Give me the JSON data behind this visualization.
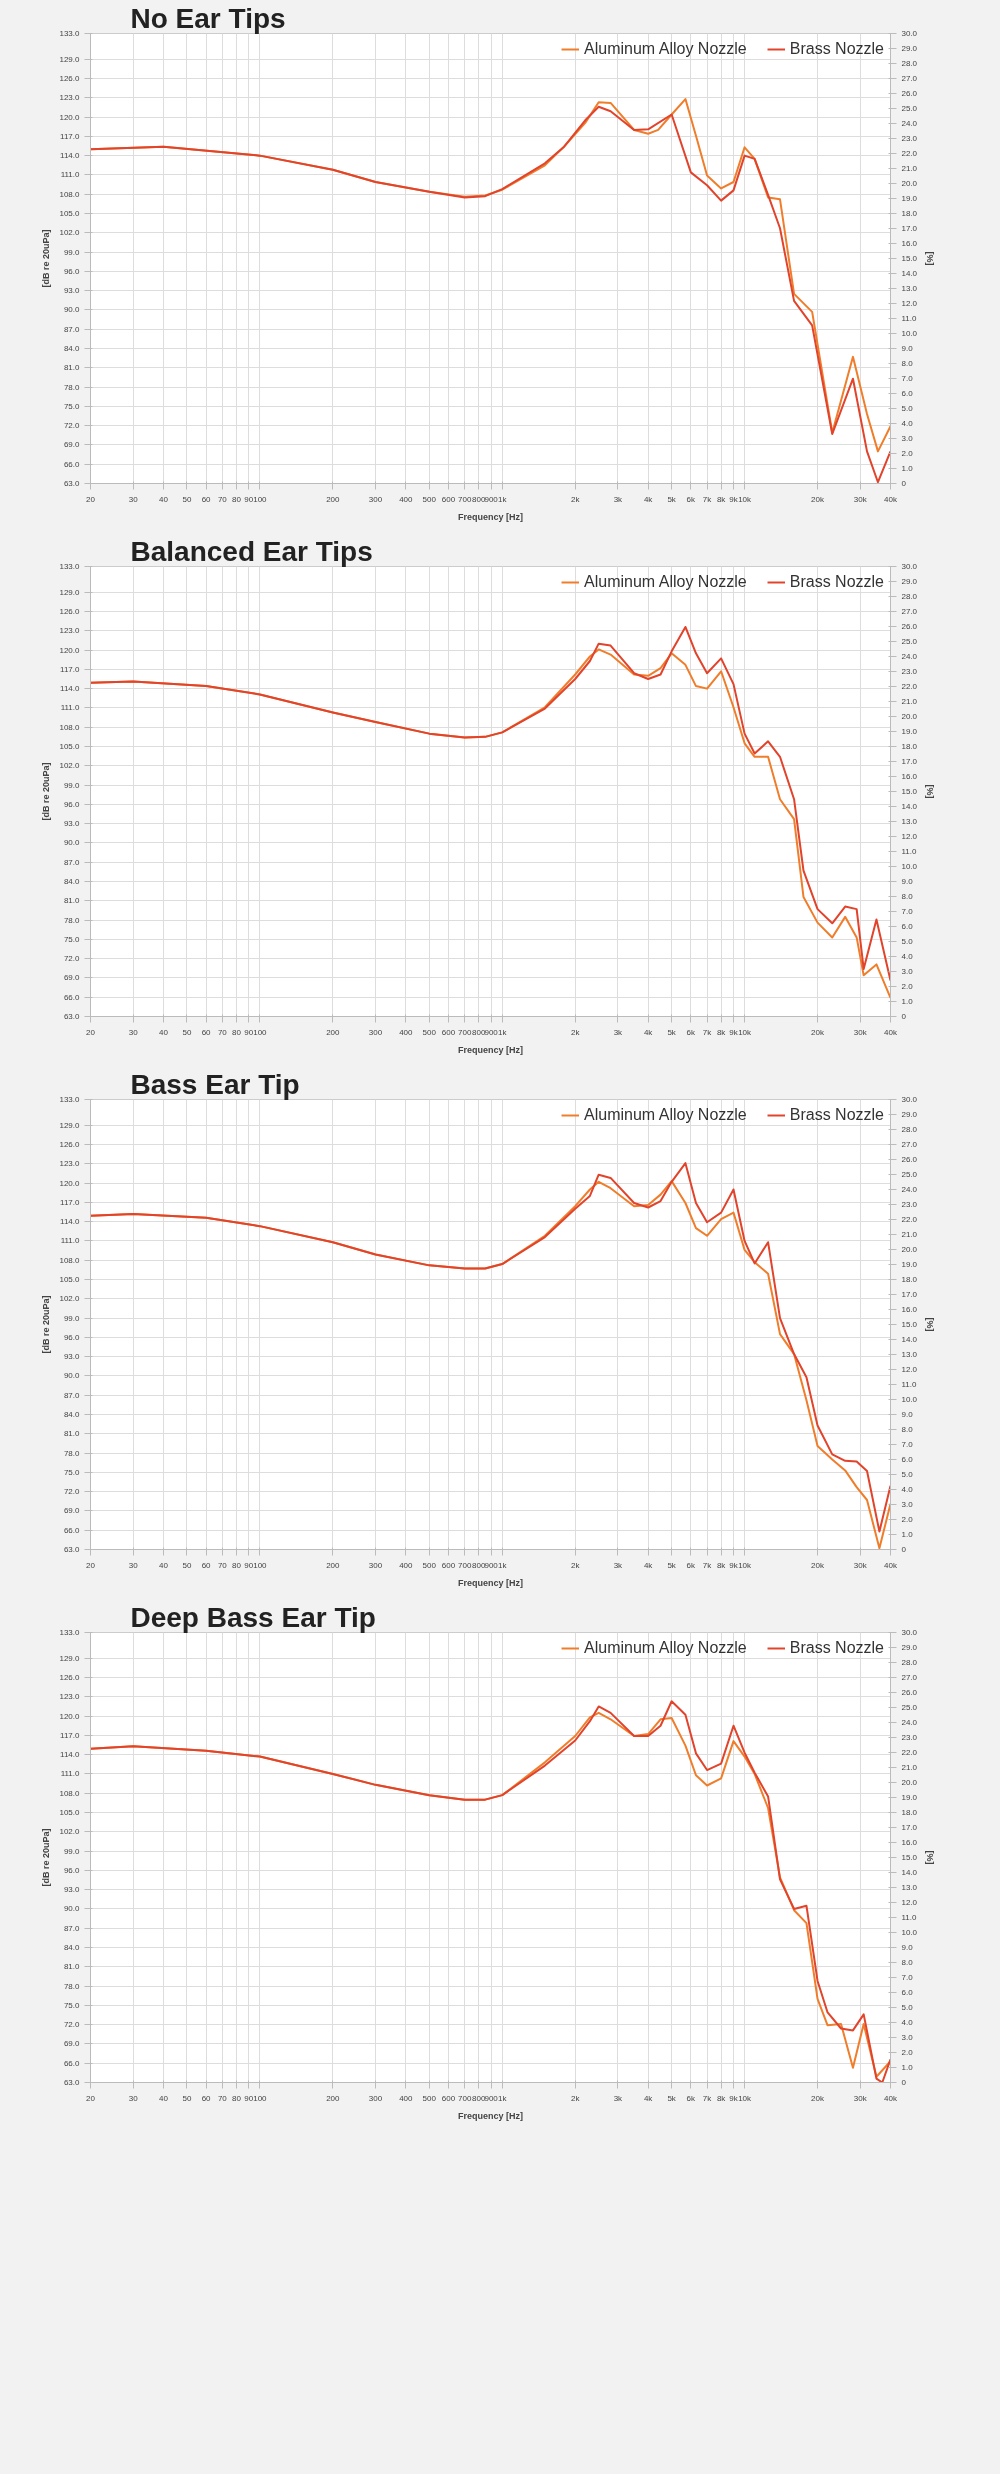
{
  "chart_data": [
    {
      "type": "line",
      "title": "No Ear Tips",
      "xlabel": "Frequency [Hz]",
      "ylabel": "[dB re 20uPa]",
      "y2label": "[%]",
      "log": "x",
      "grid": true,
      "legend": "top right",
      "xlim": [
        20,
        40000
      ],
      "ylim": [
        63,
        133
      ],
      "y2lim": [
        0,
        30
      ],
      "xticks": [
        20,
        30,
        40,
        50,
        60,
        70,
        80,
        90,
        100,
        200,
        300,
        400,
        500,
        600,
        700,
        800,
        900,
        {
          "value": 1000,
          "label": "1k"
        },
        {
          "value": 2000,
          "label": "2k"
        },
        {
          "value": 3000,
          "label": "3k"
        },
        {
          "value": 4000,
          "label": "4k"
        },
        {
          "value": 5000,
          "label": "5k"
        },
        {
          "value": 6000,
          "label": "6k"
        },
        {
          "value": 7000,
          "label": "7k"
        },
        {
          "value": 8000,
          "label": "8k"
        },
        {
          "value": 9000,
          "label": "9k"
        },
        {
          "value": 10000,
          "label": "10k"
        },
        {
          "value": 20000,
          "label": "20k"
        },
        {
          "value": 30000,
          "label": "30k"
        },
        {
          "value": 40000,
          "label": "40k"
        }
      ],
      "yticks": [
        {
          "value": 63,
          "label": "63.0"
        },
        {
          "value": 66,
          "label": "66.0"
        },
        {
          "value": 69,
          "label": "69.0"
        },
        {
          "value": 72,
          "label": "72.0"
        },
        {
          "value": 75,
          "label": "75.0"
        },
        {
          "value": 78,
          "label": "78.0"
        },
        {
          "value": 81,
          "label": "81.0"
        },
        {
          "value": 84,
          "label": "84.0"
        },
        {
          "value": 87,
          "label": "87.0"
        },
        {
          "value": 90,
          "label": "90.0"
        },
        {
          "value": 93,
          "label": "93.0"
        },
        {
          "value": 96,
          "label": "96.0"
        },
        {
          "value": 99,
          "label": "99.0"
        },
        {
          "value": 102,
          "label": "102.0"
        },
        {
          "value": 105,
          "label": "105.0"
        },
        {
          "value": 108,
          "label": "108.0"
        },
        {
          "value": 111,
          "label": "111.0"
        },
        {
          "value": 114,
          "label": "114.0"
        },
        {
          "value": 117,
          "label": "117.0"
        },
        {
          "value": 120,
          "label": "120.0"
        },
        {
          "value": 123,
          "label": "123.0"
        },
        {
          "value": 126,
          "label": "126.0"
        },
        {
          "value": 129,
          "label": "129.0"
        },
        {
          "value": 133,
          "label": "133.0"
        }
      ],
      "y2ticks": [
        0,
        {
          "value": 1,
          "label": "1.0"
        },
        {
          "value": 2,
          "label": "2.0"
        },
        {
          "value": 3,
          "label": "3.0"
        },
        {
          "value": 4,
          "label": "4.0"
        },
        {
          "value": 5,
          "label": "5.0"
        },
        {
          "value": 6,
          "label": "6.0"
        },
        {
          "value": 7,
          "label": "7.0"
        },
        {
          "value": 8,
          "label": "8.0"
        },
        {
          "value": 9,
          "label": "9.0"
        },
        {
          "value": 10,
          "label": "10.0"
        },
        {
          "value": 11,
          "label": "11.0"
        },
        {
          "value": 12,
          "label": "12.0"
        },
        {
          "value": 13,
          "label": "13.0"
        },
        {
          "value": 14,
          "label": "14.0"
        },
        {
          "value": 15,
          "label": "15.0"
        },
        {
          "value": 16,
          "label": "16.0"
        },
        {
          "value": 17,
          "label": "17.0"
        },
        {
          "value": 18,
          "label": "18.0"
        },
        {
          "value": 19,
          "label": "19.0"
        },
        {
          "value": 20,
          "label": "20.0"
        },
        {
          "value": 21,
          "label": "21.0"
        },
        {
          "value": 22,
          "label": "22.0"
        },
        {
          "value": 23,
          "label": "23.0"
        },
        {
          "value": 24,
          "label": "24.0"
        },
        {
          "value": 25,
          "label": "25.0"
        },
        {
          "value": 26,
          "label": "26.0"
        },
        {
          "value": 27,
          "label": "27.0"
        },
        {
          "value": 28,
          "label": "28.0"
        },
        {
          "value": 29,
          "label": "29.0"
        },
        {
          "value": 30,
          "label": "30.0"
        }
      ],
      "series": [
        {
          "name": "Aluminum Alloy Nozzle",
          "color": "#f07d2a",
          "x": [
            20,
            40,
            100,
            200,
            300,
            500,
            700,
            850,
            1000,
            1500,
            1800,
            2200,
            2500,
            2800,
            3500,
            4000,
            4400,
            5000,
            5700,
            6300,
            7000,
            8000,
            9000,
            10000,
            11000,
            12500,
            14000,
            16000,
            19000,
            23000,
            28000,
            32000,
            35500,
            40000
          ],
          "values": [
            115.0,
            115.4,
            114.0,
            111.8,
            109.9,
            108.4,
            107.6,
            107.8,
            108.7,
            112.5,
            115.4,
            119.1,
            122.3,
            122.2,
            118.0,
            117.4,
            118.0,
            120.4,
            122.8,
            117.1,
            110.9,
            108.9,
            109.9,
            115.3,
            113.5,
            107.5,
            107.2,
            92.5,
            89.7,
            70.9,
            82.7,
            73.8,
            68.0,
            71.9
          ]
        },
        {
          "name": "Brass Nozzle",
          "color": "#e2432b",
          "x": [
            20,
            40,
            100,
            200,
            300,
            500,
            700,
            850,
            1000,
            1500,
            1800,
            2200,
            2500,
            2800,
            3500,
            4000,
            5000,
            6000,
            7000,
            8000,
            9000,
            10000,
            11000,
            12500,
            14000,
            16000,
            19000,
            23000,
            28000,
            32000,
            35500,
            40000
          ],
          "values": [
            115.0,
            115.4,
            114.0,
            111.8,
            109.9,
            108.4,
            107.5,
            107.7,
            108.8,
            112.8,
            115.4,
            119.5,
            121.6,
            120.9,
            118.0,
            118.1,
            120.4,
            111.4,
            109.4,
            107.0,
            108.6,
            114.0,
            113.5,
            107.9,
            102.7,
            91.4,
            87.6,
            70.7,
            79.3,
            68.0,
            63.2,
            68.0
          ]
        }
      ]
    },
    {
      "type": "line",
      "title": "Balanced Ear Tips",
      "xlabel": "Frequency [Hz]",
      "ylabel": "[dB re 20uPa]",
      "y2label": "[%]",
      "log": "x",
      "grid": true,
      "legend": "top right",
      "xlim": [
        20,
        40000
      ],
      "ylim": [
        63,
        133
      ],
      "y2lim": [
        0,
        30
      ],
      "xticks": [
        20,
        30,
        40,
        50,
        60,
        70,
        80,
        90,
        100,
        200,
        300,
        400,
        500,
        600,
        700,
        800,
        900,
        {
          "value": 1000,
          "label": "1k"
        },
        {
          "value": 2000,
          "label": "2k"
        },
        {
          "value": 3000,
          "label": "3k"
        },
        {
          "value": 4000,
          "label": "4k"
        },
        {
          "value": 5000,
          "label": "5k"
        },
        {
          "value": 6000,
          "label": "6k"
        },
        {
          "value": 7000,
          "label": "7k"
        },
        {
          "value": 8000,
          "label": "8k"
        },
        {
          "value": 9000,
          "label": "9k"
        },
        {
          "value": 10000,
          "label": "10k"
        },
        {
          "value": 20000,
          "label": "20k"
        },
        {
          "value": 30000,
          "label": "30k"
        },
        {
          "value": 40000,
          "label": "40k"
        }
      ],
      "yticks": [
        {
          "value": 63,
          "label": "63.0"
        },
        {
          "value": 66,
          "label": "66.0"
        },
        {
          "value": 69,
          "label": "69.0"
        },
        {
          "value": 72,
          "label": "72.0"
        },
        {
          "value": 75,
          "label": "75.0"
        },
        {
          "value": 78,
          "label": "78.0"
        },
        {
          "value": 81,
          "label": "81.0"
        },
        {
          "value": 84,
          "label": "84.0"
        },
        {
          "value": 87,
          "label": "87.0"
        },
        {
          "value": 90,
          "label": "90.0"
        },
        {
          "value": 93,
          "label": "93.0"
        },
        {
          "value": 96,
          "label": "96.0"
        },
        {
          "value": 99,
          "label": "99.0"
        },
        {
          "value": 102,
          "label": "102.0"
        },
        {
          "value": 105,
          "label": "105.0"
        },
        {
          "value": 108,
          "label": "108.0"
        },
        {
          "value": 111,
          "label": "111.0"
        },
        {
          "value": 114,
          "label": "114.0"
        },
        {
          "value": 117,
          "label": "117.0"
        },
        {
          "value": 120,
          "label": "120.0"
        },
        {
          "value": 123,
          "label": "123.0"
        },
        {
          "value": 126,
          "label": "126.0"
        },
        {
          "value": 129,
          "label": "129.0"
        },
        {
          "value": 133,
          "label": "133.0"
        }
      ],
      "y2ticks": [
        0,
        {
          "value": 1,
          "label": "1.0"
        },
        {
          "value": 2,
          "label": "2.0"
        },
        {
          "value": 3,
          "label": "3.0"
        },
        {
          "value": 4,
          "label": "4.0"
        },
        {
          "value": 5,
          "label": "5.0"
        },
        {
          "value": 6,
          "label": "6.0"
        },
        {
          "value": 7,
          "label": "7.0"
        },
        {
          "value": 8,
          "label": "8.0"
        },
        {
          "value": 9,
          "label": "9.0"
        },
        {
          "value": 10,
          "label": "10.0"
        },
        {
          "value": 11,
          "label": "11.0"
        },
        {
          "value": 12,
          "label": "12.0"
        },
        {
          "value": 13,
          "label": "13.0"
        },
        {
          "value": 14,
          "label": "14.0"
        },
        {
          "value": 15,
          "label": "15.0"
        },
        {
          "value": 16,
          "label": "16.0"
        },
        {
          "value": 17,
          "label": "17.0"
        },
        {
          "value": 18,
          "label": "18.0"
        },
        {
          "value": 19,
          "label": "19.0"
        },
        {
          "value": 20,
          "label": "20.0"
        },
        {
          "value": 21,
          "label": "21.0"
        },
        {
          "value": 22,
          "label": "22.0"
        },
        {
          "value": 23,
          "label": "23.0"
        },
        {
          "value": 24,
          "label": "24.0"
        },
        {
          "value": 25,
          "label": "25.0"
        },
        {
          "value": 26,
          "label": "26.0"
        },
        {
          "value": 27,
          "label": "27.0"
        },
        {
          "value": 28,
          "label": "28.0"
        },
        {
          "value": 29,
          "label": "29.0"
        },
        {
          "value": 30,
          "label": "30.0"
        }
      ],
      "series": [
        {
          "name": "Aluminum Alloy Nozzle",
          "color": "#f07d2a",
          "x": [
            20,
            30,
            60,
            100,
            200,
            300,
            500,
            700,
            850,
            1000,
            1500,
            2000,
            2300,
            2500,
            2800,
            3500,
            4000,
            4500,
            5000,
            5700,
            6300,
            7000,
            8000,
            9000,
            10000,
            11000,
            12500,
            14000,
            16000,
            17500,
            20000,
            23000,
            26000,
            29000,
            31000,
            35000,
            40000
          ],
          "values": [
            114.9,
            115.1,
            114.4,
            113.1,
            110.3,
            108.8,
            107.0,
            106.4,
            106.5,
            107.2,
            111.1,
            116.2,
            119.0,
            120.1,
            119.3,
            116.2,
            116.0,
            117.2,
            119.5,
            117.7,
            114.4,
            114.0,
            116.7,
            111.1,
            105.5,
            103.4,
            103.4,
            96.8,
            93.7,
            81.6,
            77.6,
            75.3,
            78.5,
            75.3,
            69.4,
            71.1,
            65.9
          ]
        },
        {
          "name": "Brass Nozzle",
          "color": "#e2432b",
          "x": [
            20,
            30,
            60,
            100,
            200,
            300,
            500,
            700,
            850,
            1000,
            1500,
            2000,
            2300,
            2500,
            2800,
            3500,
            4000,
            4500,
            5000,
            5700,
            6300,
            7000,
            8000,
            9000,
            10000,
            11000,
            12500,
            14000,
            16000,
            17500,
            20000,
            23000,
            26000,
            29000,
            31000,
            35000,
            40000
          ],
          "values": [
            114.9,
            115.1,
            114.4,
            113.1,
            110.3,
            108.8,
            107.0,
            106.4,
            106.5,
            107.2,
            110.9,
            115.5,
            118.3,
            121.0,
            120.7,
            116.4,
            115.5,
            116.2,
            119.8,
            123.6,
            119.5,
            116.4,
            118.7,
            114.7,
            107.0,
            103.9,
            105.8,
            103.4,
            96.8,
            85.7,
            79.7,
            77.5,
            80.1,
            79.7,
            70.4,
            78.1,
            68.6
          ]
        }
      ]
    },
    {
      "type": "line",
      "title": "Bass Ear Tip",
      "xlabel": "Frequency [Hz]",
      "ylabel": "[dB re 20uPa]",
      "y2label": "[%]",
      "log": "x",
      "grid": true,
      "legend": "top right",
      "xlim": [
        20,
        40000
      ],
      "ylim": [
        63,
        133
      ],
      "y2lim": [
        0,
        30
      ],
      "xticks": [
        20,
        30,
        40,
        50,
        60,
        70,
        80,
        90,
        100,
        200,
        300,
        400,
        500,
        600,
        700,
        800,
        900,
        {
          "value": 1000,
          "label": "1k"
        },
        {
          "value": 2000,
          "label": "2k"
        },
        {
          "value": 3000,
          "label": "3k"
        },
        {
          "value": 4000,
          "label": "4k"
        },
        {
          "value": 5000,
          "label": "5k"
        },
        {
          "value": 6000,
          "label": "6k"
        },
        {
          "value": 7000,
          "label": "7k"
        },
        {
          "value": 8000,
          "label": "8k"
        },
        {
          "value": 9000,
          "label": "9k"
        },
        {
          "value": 10000,
          "label": "10k"
        },
        {
          "value": 20000,
          "label": "20k"
        },
        {
          "value": 30000,
          "label": "30k"
        },
        {
          "value": 40000,
          "label": "40k"
        }
      ],
      "yticks": [
        {
          "value": 63,
          "label": "63.0"
        },
        {
          "value": 66,
          "label": "66.0"
        },
        {
          "value": 69,
          "label": "69.0"
        },
        {
          "value": 72,
          "label": "72.0"
        },
        {
          "value": 75,
          "label": "75.0"
        },
        {
          "value": 78,
          "label": "78.0"
        },
        {
          "value": 81,
          "label": "81.0"
        },
        {
          "value": 84,
          "label": "84.0"
        },
        {
          "value": 87,
          "label": "87.0"
        },
        {
          "value": 90,
          "label": "90.0"
        },
        {
          "value": 93,
          "label": "93.0"
        },
        {
          "value": 96,
          "label": "96.0"
        },
        {
          "value": 99,
          "label": "99.0"
        },
        {
          "value": 102,
          "label": "102.0"
        },
        {
          "value": 105,
          "label": "105.0"
        },
        {
          "value": 108,
          "label": "108.0"
        },
        {
          "value": 111,
          "label": "111.0"
        },
        {
          "value": 114,
          "label": "114.0"
        },
        {
          "value": 117,
          "label": "117.0"
        },
        {
          "value": 120,
          "label": "120.0"
        },
        {
          "value": 123,
          "label": "123.0"
        },
        {
          "value": 126,
          "label": "126.0"
        },
        {
          "value": 129,
          "label": "129.0"
        },
        {
          "value": 133,
          "label": "133.0"
        }
      ],
      "y2ticks": [
        0,
        {
          "value": 1,
          "label": "1.0"
        },
        {
          "value": 2,
          "label": "2.0"
        },
        {
          "value": 3,
          "label": "3.0"
        },
        {
          "value": 4,
          "label": "4.0"
        },
        {
          "value": 5,
          "label": "5.0"
        },
        {
          "value": 6,
          "label": "6.0"
        },
        {
          "value": 7,
          "label": "7.0"
        },
        {
          "value": 8,
          "label": "8.0"
        },
        {
          "value": 9,
          "label": "9.0"
        },
        {
          "value": 10,
          "label": "10.0"
        },
        {
          "value": 11,
          "label": "11.0"
        },
        {
          "value": 12,
          "label": "12.0"
        },
        {
          "value": 13,
          "label": "13.0"
        },
        {
          "value": 14,
          "label": "14.0"
        },
        {
          "value": 15,
          "label": "15.0"
        },
        {
          "value": 16,
          "label": "16.0"
        },
        {
          "value": 17,
          "label": "17.0"
        },
        {
          "value": 18,
          "label": "18.0"
        },
        {
          "value": 19,
          "label": "19.0"
        },
        {
          "value": 20,
          "label": "20.0"
        },
        {
          "value": 21,
          "label": "21.0"
        },
        {
          "value": 22,
          "label": "22.0"
        },
        {
          "value": 23,
          "label": "23.0"
        },
        {
          "value": 24,
          "label": "24.0"
        },
        {
          "value": 25,
          "label": "25.0"
        },
        {
          "value": 26,
          "label": "26.0"
        },
        {
          "value": 27,
          "label": "27.0"
        },
        {
          "value": 28,
          "label": "28.0"
        },
        {
          "value": 29,
          "label": "29.0"
        },
        {
          "value": 30,
          "label": "30.0"
        }
      ],
      "series": [
        {
          "name": "Aluminum Alloy Nozzle",
          "color": "#f07d2a",
          "x": [
            20,
            30,
            60,
            100,
            200,
            300,
            500,
            700,
            850,
            1000,
            1500,
            2000,
            2300,
            2500,
            2800,
            3500,
            4000,
            4500,
            5000,
            5700,
            6300,
            7000,
            8000,
            9000,
            10000,
            11000,
            12500,
            14000,
            16000,
            18000,
            20000,
            23000,
            26000,
            29000,
            32000,
            36000,
            40000
          ],
          "values": [
            114.9,
            115.2,
            114.6,
            113.3,
            110.8,
            108.9,
            107.2,
            106.7,
            106.7,
            107.4,
            111.8,
            116.4,
            119.0,
            120.2,
            119.2,
            116.4,
            116.6,
            118.2,
            120.3,
            116.9,
            113.0,
            111.8,
            114.4,
            115.4,
            109.6,
            107.7,
            105.9,
            96.5,
            93.4,
            86.2,
            79.1,
            77.0,
            75.3,
            72.7,
            70.7,
            63.2,
            70.1
          ]
        },
        {
          "name": "Brass Nozzle",
          "color": "#e2432b",
          "x": [
            20,
            30,
            60,
            100,
            200,
            300,
            500,
            700,
            850,
            1000,
            1500,
            2000,
            2300,
            2500,
            2800,
            3500,
            4000,
            4500,
            5000,
            5700,
            6300,
            7000,
            8000,
            9000,
            10000,
            11000,
            12500,
            14000,
            16000,
            18000,
            20000,
            23000,
            26000,
            29000,
            32000,
            36000,
            40000
          ],
          "values": [
            114.9,
            115.2,
            114.6,
            113.3,
            110.8,
            108.9,
            107.2,
            106.7,
            106.7,
            107.4,
            111.6,
            116.0,
            118.0,
            121.3,
            120.8,
            116.9,
            116.2,
            117.2,
            120.2,
            123.1,
            116.9,
            113.9,
            115.4,
            119.0,
            111.0,
            107.5,
            110.8,
            99.0,
            93.4,
            89.8,
            82.3,
            77.8,
            76.8,
            76.7,
            75.2,
            65.8,
            72.9
          ]
        }
      ]
    },
    {
      "type": "line",
      "title": "Deep Bass Ear Tip",
      "xlabel": "Frequency [Hz]",
      "ylabel": "[dB re 20uPa]",
      "y2label": "[%]",
      "log": "x",
      "grid": true,
      "legend": "top right",
      "xlim": [
        20,
        40000
      ],
      "ylim": [
        63,
        133
      ],
      "y2lim": [
        0,
        30
      ],
      "xticks": [
        20,
        30,
        40,
        50,
        60,
        70,
        80,
        90,
        100,
        200,
        300,
        400,
        500,
        600,
        700,
        800,
        900,
        {
          "value": 1000,
          "label": "1k"
        },
        {
          "value": 2000,
          "label": "2k"
        },
        {
          "value": 3000,
          "label": "3k"
        },
        {
          "value": 4000,
          "label": "4k"
        },
        {
          "value": 5000,
          "label": "5k"
        },
        {
          "value": 6000,
          "label": "6k"
        },
        {
          "value": 7000,
          "label": "7k"
        },
        {
          "value": 8000,
          "label": "8k"
        },
        {
          "value": 9000,
          "label": "9k"
        },
        {
          "value": 10000,
          "label": "10k"
        },
        {
          "value": 20000,
          "label": "20k"
        },
        {
          "value": 30000,
          "label": "30k"
        },
        {
          "value": 40000,
          "label": "40k"
        }
      ],
      "yticks": [
        {
          "value": 63,
          "label": "63.0"
        },
        {
          "value": 66,
          "label": "66.0"
        },
        {
          "value": 69,
          "label": "69.0"
        },
        {
          "value": 72,
          "label": "72.0"
        },
        {
          "value": 75,
          "label": "75.0"
        },
        {
          "value": 78,
          "label": "78.0"
        },
        {
          "value": 81,
          "label": "81.0"
        },
        {
          "value": 84,
          "label": "84.0"
        },
        {
          "value": 87,
          "label": "87.0"
        },
        {
          "value": 90,
          "label": "90.0"
        },
        {
          "value": 93,
          "label": "93.0"
        },
        {
          "value": 96,
          "label": "96.0"
        },
        {
          "value": 99,
          "label": "99.0"
        },
        {
          "value": 102,
          "label": "102.0"
        },
        {
          "value": 105,
          "label": "105.0"
        },
        {
          "value": 108,
          "label": "108.0"
        },
        {
          "value": 111,
          "label": "111.0"
        },
        {
          "value": 114,
          "label": "114.0"
        },
        {
          "value": 117,
          "label": "117.0"
        },
        {
          "value": 120,
          "label": "120.0"
        },
        {
          "value": 123,
          "label": "123.0"
        },
        {
          "value": 126,
          "label": "126.0"
        },
        {
          "value": 129,
          "label": "129.0"
        },
        {
          "value": 133,
          "label": "133.0"
        }
      ],
      "y2ticks": [
        0,
        {
          "value": 1,
          "label": "1.0"
        },
        {
          "value": 2,
          "label": "2.0"
        },
        {
          "value": 3,
          "label": "3.0"
        },
        {
          "value": 4,
          "label": "4.0"
        },
        {
          "value": 5,
          "label": "5.0"
        },
        {
          "value": 6,
          "label": "6.0"
        },
        {
          "value": 7,
          "label": "7.0"
        },
        {
          "value": 8,
          "label": "8.0"
        },
        {
          "value": 9,
          "label": "9.0"
        },
        {
          "value": 10,
          "label": "10.0"
        },
        {
          "value": 11,
          "label": "11.0"
        },
        {
          "value": 12,
          "label": "12.0"
        },
        {
          "value": 13,
          "label": "13.0"
        },
        {
          "value": 14,
          "label": "14.0"
        },
        {
          "value": 15,
          "label": "15.0"
        },
        {
          "value": 16,
          "label": "16.0"
        },
        {
          "value": 17,
          "label": "17.0"
        },
        {
          "value": 18,
          "label": "18.0"
        },
        {
          "value": 19,
          "label": "19.0"
        },
        {
          "value": 20,
          "label": "20.0"
        },
        {
          "value": 21,
          "label": "21.0"
        },
        {
          "value": 22,
          "label": "22.0"
        },
        {
          "value": 23,
          "label": "23.0"
        },
        {
          "value": 24,
          "label": "24.0"
        },
        {
          "value": 25,
          "label": "25.0"
        },
        {
          "value": 26,
          "label": "26.0"
        },
        {
          "value": 27,
          "label": "27.0"
        },
        {
          "value": 28,
          "label": "28.0"
        },
        {
          "value": 29,
          "label": "29.0"
        },
        {
          "value": 30,
          "label": "30.0"
        }
      ],
      "series": [
        {
          "name": "Aluminum Alloy Nozzle",
          "color": "#f07d2a",
          "x": [
            20,
            30,
            60,
            100,
            200,
            300,
            500,
            700,
            850,
            1000,
            1500,
            2000,
            2300,
            2500,
            2800,
            3500,
            4000,
            4500,
            5000,
            5700,
            6300,
            7000,
            8000,
            9000,
            10000,
            11000,
            12500,
            14000,
            16000,
            18000,
            20000,
            22000,
            25000,
            28000,
            31000,
            35000,
            40000
          ],
          "values": [
            114.9,
            115.3,
            114.6,
            113.7,
            111.0,
            109.3,
            107.7,
            107.0,
            107.0,
            107.7,
            112.8,
            116.9,
            119.8,
            120.5,
            119.5,
            116.9,
            117.2,
            119.5,
            119.7,
            115.4,
            110.8,
            109.2,
            110.3,
            116.1,
            113.7,
            111.0,
            105.7,
            94.9,
            89.8,
            87.8,
            76.0,
            71.9,
            72.1,
            65.3,
            72.1,
            63.9,
            66.3
          ]
        },
        {
          "name": "Brass Nozzle",
          "color": "#e2432b",
          "x": [
            20,
            30,
            60,
            100,
            200,
            300,
            500,
            700,
            850,
            1000,
            1500,
            2000,
            2300,
            2500,
            2800,
            3500,
            4000,
            4500,
            5000,
            5700,
            6300,
            7000,
            8000,
            9000,
            10000,
            11000,
            12500,
            14000,
            16000,
            18000,
            20000,
            22000,
            25000,
            28000,
            31000,
            35000,
            37000,
            40000
          ],
          "values": [
            114.9,
            115.3,
            114.6,
            113.7,
            111.0,
            109.3,
            107.7,
            107.0,
            107.0,
            107.7,
            112.3,
            116.2,
            119.2,
            121.5,
            120.5,
            116.9,
            116.9,
            118.5,
            122.3,
            120.2,
            114.2,
            111.6,
            112.6,
            118.5,
            114.3,
            111.2,
            107.5,
            94.6,
            90.0,
            90.5,
            78.8,
            73.9,
            71.4,
            71.1,
            73.6,
            63.6,
            63.0,
            66.6
          ]
        }
      ]
    }
  ]
}
